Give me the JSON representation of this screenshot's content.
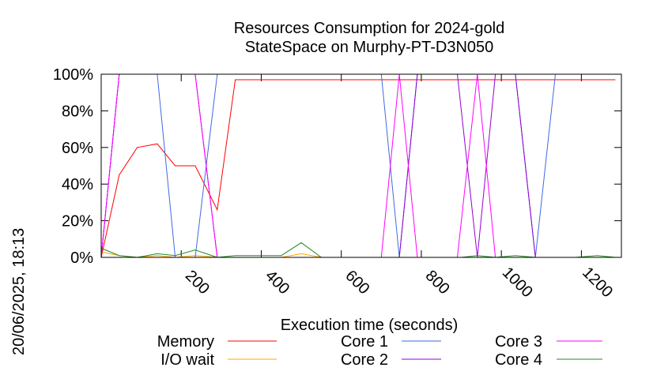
{
  "chart_data": {
    "type": "line",
    "title_lines": [
      "Resources Consumption for 2024-gold",
      "StateSpace on Murphy-PT-D3N050"
    ],
    "xlabel": "Execution time (seconds)",
    "ylabel": "",
    "timestamp": "20/06/2025, 18:13",
    "xlim": [
      0,
      1300
    ],
    "ylim": [
      0,
      100
    ],
    "x_ticks": [
      200,
      400,
      600,
      800,
      1000,
      1200
    ],
    "y_ticks": [
      0,
      20,
      40,
      60,
      80,
      100
    ],
    "y_tick_suffix": "%",
    "legend_placement": "bottom",
    "series": [
      {
        "name": "Memory",
        "color": "#ff0000",
        "x": [
          0,
          45,
          90,
          140,
          185,
          235,
          290,
          335,
          400,
          500,
          600,
          700,
          800,
          900,
          1000,
          1100,
          1200,
          1285
        ],
        "values": [
          0,
          45,
          60,
          62,
          50,
          50,
          26,
          97,
          97,
          97,
          97,
          97,
          97,
          97,
          97,
          97,
          97,
          97
        ]
      },
      {
        "name": "I/O wait",
        "color": "#ffa500",
        "x": [
          0,
          45,
          90,
          140,
          185,
          235,
          290,
          335,
          400,
          450,
          500,
          550,
          600,
          700,
          800,
          900,
          1000,
          1100,
          1200,
          1285
        ],
        "values": [
          3,
          1,
          0,
          1,
          0,
          1,
          0,
          0,
          0,
          0,
          2,
          0,
          0,
          0,
          0,
          0,
          0,
          0,
          0,
          0
        ]
      },
      {
        "name": "Core 1",
        "color": "#4169e1",
        "x": [
          0,
          45,
          90,
          140,
          185,
          235,
          290,
          335,
          400,
          500,
          600,
          700,
          745,
          790,
          845,
          890,
          940,
          985,
          1035,
          1085,
          1135,
          1185,
          1240,
          1285
        ],
        "values": [
          0,
          100,
          100,
          100,
          0,
          0,
          100,
          100,
          100,
          100,
          100,
          100,
          0,
          100,
          100,
          100,
          100,
          100,
          100,
          0,
          100,
          100,
          100,
          100
        ]
      },
      {
        "name": "Core 2",
        "color": "#9400d3",
        "x": [
          0,
          45,
          90,
          140,
          185,
          235,
          290,
          335,
          400,
          500,
          600,
          700,
          745,
          790,
          845,
          890,
          940,
          985,
          1035,
          1085,
          1135,
          1185,
          1240,
          1285
        ],
        "values": [
          0,
          100,
          100,
          100,
          100,
          100,
          0,
          0,
          0,
          0,
          0,
          0,
          0,
          100,
          100,
          100,
          0,
          100,
          100,
          0,
          0,
          0,
          0,
          0
        ]
      },
      {
        "name": "Core 3",
        "color": "#ff00ff",
        "x": [
          0,
          45,
          90,
          140,
          185,
          235,
          290,
          335,
          400,
          500,
          600,
          700,
          745,
          790,
          845,
          890,
          940,
          985,
          1035,
          1085,
          1135,
          1185,
          1240,
          1285
        ],
        "values": [
          0,
          100,
          100,
          100,
          100,
          100,
          0,
          0,
          0,
          0,
          0,
          0,
          100,
          0,
          0,
          0,
          100,
          0,
          0,
          0,
          0,
          0,
          0,
          0
        ]
      },
      {
        "name": "Core 4",
        "color": "#228b22",
        "x": [
          0,
          45,
          90,
          140,
          185,
          235,
          290,
          335,
          400,
          450,
          500,
          550,
          600,
          700,
          800,
          900,
          940,
          985,
          1035,
          1085,
          1135,
          1185,
          1240,
          1285
        ],
        "values": [
          5,
          1,
          0,
          2,
          1,
          4,
          0,
          1,
          1,
          1,
          8,
          0,
          0,
          0,
          0,
          0,
          1,
          0,
          1,
          0,
          0,
          0,
          1,
          0
        ]
      }
    ]
  }
}
